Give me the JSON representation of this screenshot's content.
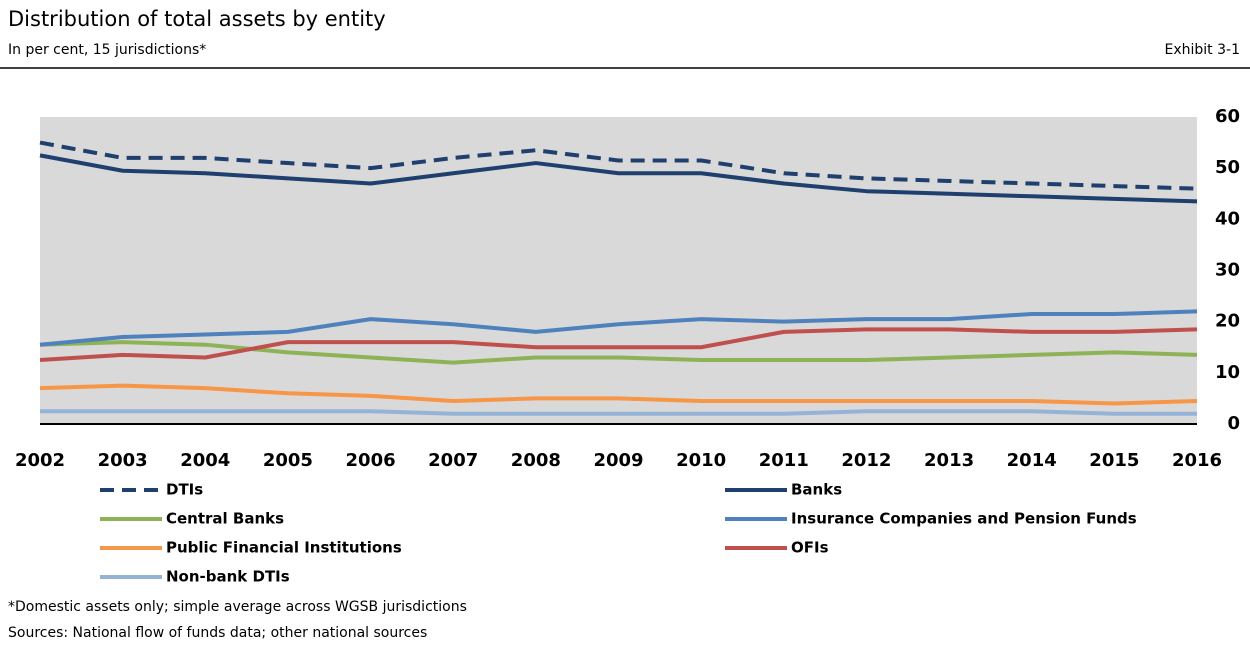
{
  "chart_data": {
    "type": "line",
    "title": "Distribution of total assets by entity",
    "subtitle": "In per cent, 15 jurisdictions*",
    "exhibit": "Exhibit 3-1",
    "notes": [
      "*Domestic assets only; simple average across WGSB jurisdictions",
      "Sources: National flow of funds data; other national sources"
    ],
    "categories": [
      "2002",
      "2003",
      "2004",
      "2005",
      "2006",
      "2007",
      "2008",
      "2009",
      "2010",
      "2011",
      "2012",
      "2013",
      "2014",
      "2015",
      "2016"
    ],
    "ylim": [
      0,
      60
    ],
    "yticks": [
      0,
      10,
      20,
      30,
      40,
      50,
      60
    ],
    "grid": false,
    "plot_background": "#d9d9d9",
    "series": [
      {
        "name": "DTIs",
        "color": "#1f3f6e",
        "linestyle": "dashed",
        "values": [
          55,
          52,
          52,
          51,
          50,
          52,
          53.5,
          51.5,
          51.5,
          49,
          48,
          47.5,
          47,
          46.5,
          46
        ]
      },
      {
        "name": "Banks",
        "color": "#1f3f6e",
        "linestyle": "solid",
        "values": [
          52.5,
          49.5,
          49,
          48,
          47,
          49,
          51,
          49,
          49,
          47,
          45.5,
          45,
          44.5,
          44,
          43.5
        ]
      },
      {
        "name": "Central Banks",
        "color": "#8db356",
        "linestyle": "solid",
        "values": [
          15.5,
          16,
          15.5,
          14,
          13,
          12,
          13,
          13,
          12.5,
          12.5,
          12.5,
          13,
          13.5,
          14,
          13.5
        ]
      },
      {
        "name": "Insurance Companies and Pension Funds",
        "color": "#4f81bd",
        "linestyle": "solid",
        "values": [
          15.5,
          17,
          17.5,
          18,
          20.5,
          19.5,
          18,
          19.5,
          20.5,
          20,
          20.5,
          20.5,
          21.5,
          21.5,
          22
        ]
      },
      {
        "name": "Public Financial Institutions",
        "color": "#f79646",
        "linestyle": "solid",
        "values": [
          7,
          7.5,
          7,
          6,
          5.5,
          4.5,
          5,
          5,
          4.5,
          4.5,
          4.5,
          4.5,
          4.5,
          4,
          4.5
        ]
      },
      {
        "name": "OFIs",
        "color": "#c0504d",
        "linestyle": "solid",
        "values": [
          12.5,
          13.5,
          13,
          16,
          16,
          16,
          15,
          15,
          15,
          18,
          18.5,
          18.5,
          18,
          18,
          18.5
        ]
      },
      {
        "name": "Non-bank DTIs",
        "color": "#95b3d7",
        "linestyle": "solid",
        "values": [
          2.5,
          2.5,
          2.5,
          2.5,
          2.5,
          2,
          2,
          2,
          2,
          2,
          2.5,
          2.5,
          2.5,
          2,
          2
        ]
      }
    ]
  }
}
